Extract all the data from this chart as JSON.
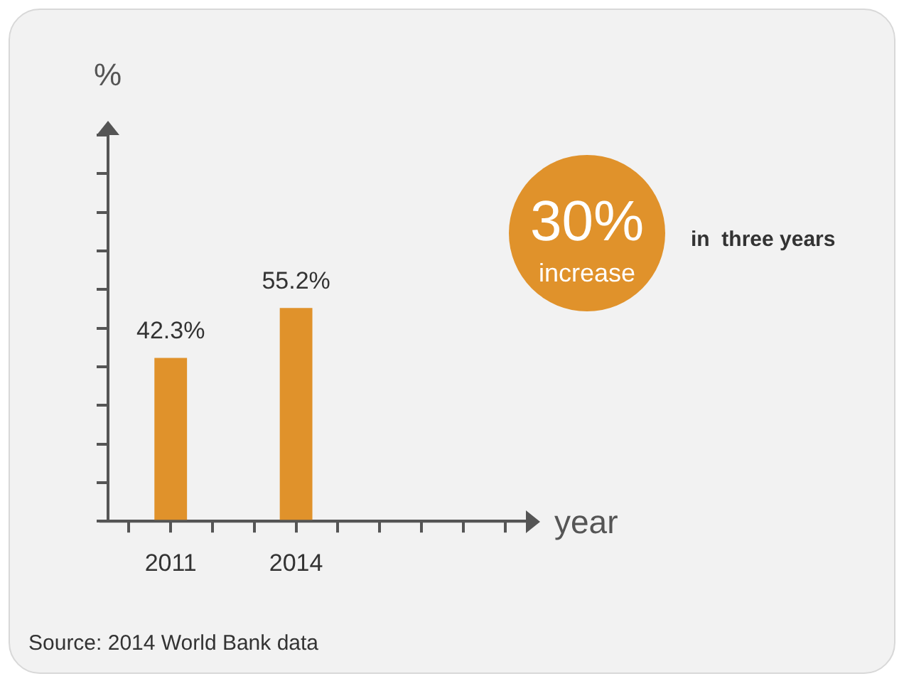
{
  "chart_data": {
    "type": "bar",
    "xlabel": "year",
    "ylabel": "%",
    "categories": [
      null,
      "2011",
      null,
      null,
      "2014",
      null,
      null,
      null,
      null,
      null
    ],
    "values": [
      null,
      42.3,
      null,
      null,
      55.2,
      null,
      null,
      null,
      null,
      null
    ],
    "color": "#e0922b",
    "ylim": [
      0,
      100
    ],
    "yticks": [
      {
        "value": 0,
        "label": null
      },
      {
        "value": 10,
        "label": null
      },
      {
        "value": 20,
        "label": null
      },
      {
        "value": 30,
        "label": null
      },
      {
        "value": 40,
        "label": null
      },
      {
        "value": 50,
        "label": null
      },
      {
        "value": 60,
        "label": null
      },
      {
        "value": 70,
        "label": null
      },
      {
        "value": 80,
        "label": null
      },
      {
        "value": 90,
        "label": null
      },
      {
        "value": 100,
        "label": null
      }
    ],
    "tick_labels": "x",
    "grid": false,
    "legend": false,
    "data_labels": true,
    "value_labels": [
      null,
      "42.3%",
      null,
      null,
      "55.2%",
      null,
      null,
      null,
      null,
      null
    ],
    "annotations": [
      "30%",
      "increase",
      "in  three years",
      "Source: 2014 World Bank data"
    ]
  }
}
